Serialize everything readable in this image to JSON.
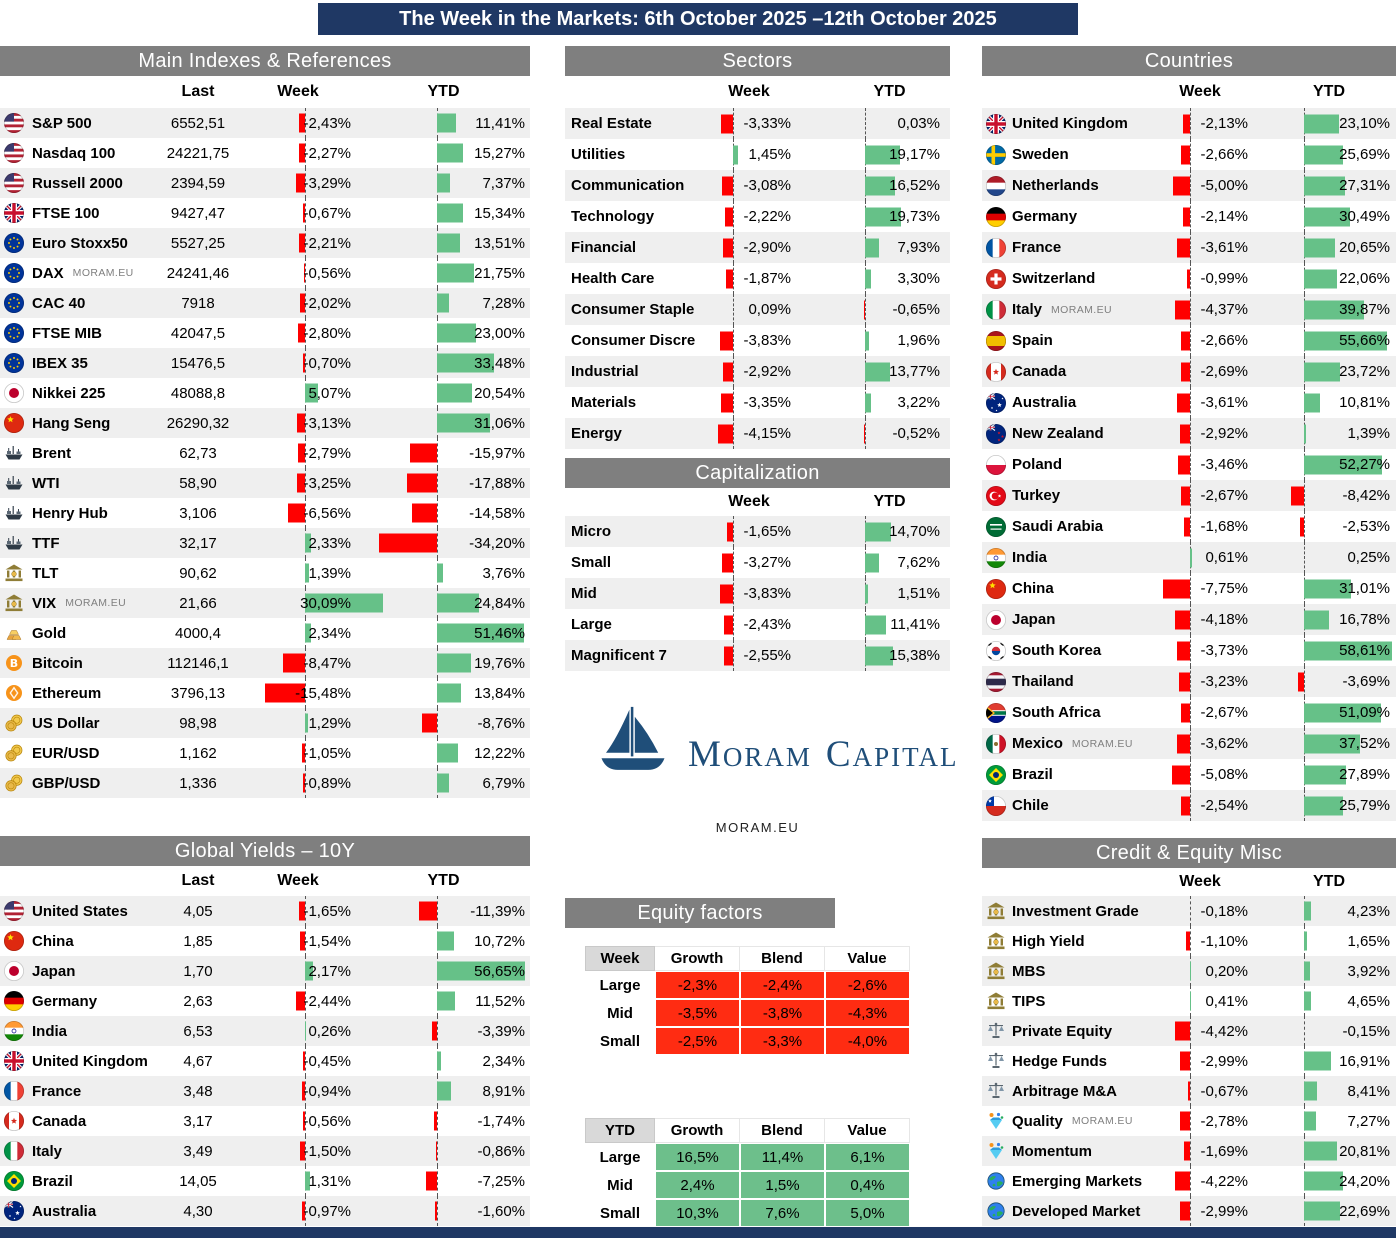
{
  "title": "The Week in the Markets: 6th October 2025 –12th October 2025",
  "logo": {
    "word1": "MORAM",
    "word2": "CAPITAL",
    "site": "MORAM.EU"
  },
  "colors": {
    "header_navy": "#1F3864",
    "section_gray": "#7F7F7F",
    "bar_green": "#66C188",
    "bar_red": "#FF0000",
    "factor_red": "#FF2C12",
    "factor_green": "#6DBF8B",
    "row_alt": "#EFEFEF",
    "logo_navy": "#1F4E79"
  },
  "chart_data": [
    {
      "id": "main_indexes",
      "type": "table",
      "title": "Main Indexes & References",
      "headers": {
        "last": "Last",
        "week": "Week",
        "ytd": "YTD"
      },
      "rows": [
        {
          "icon": "flag-us",
          "label": "S&P 500",
          "last": "6552,51",
          "week": "-2,43%",
          "ytd": "11,41%"
        },
        {
          "icon": "flag-us",
          "label": "Nasdaq 100",
          "last": "24221,75",
          "week": "-2,27%",
          "ytd": "15,27%"
        },
        {
          "icon": "flag-us",
          "label": "Russell 2000",
          "last": "2394,59",
          "week": "-3,29%",
          "ytd": "7,37%"
        },
        {
          "icon": "flag-uk",
          "label": "FTSE 100",
          "last": "9427,47",
          "week": "-0,67%",
          "ytd": "15,34%"
        },
        {
          "icon": "flag-eu",
          "label": "Euro Stoxx50",
          "last": "5527,25",
          "week": "-2,21%",
          "ytd": "13,51%"
        },
        {
          "icon": "flag-eu",
          "label": "DAX",
          "note": "MORAM.EU",
          "last": "24241,46",
          "week": "-0,56%",
          "ytd": "21,75%"
        },
        {
          "icon": "flag-eu",
          "label": "CAC 40",
          "last": "7918",
          "week": "-2,02%",
          "ytd": "7,28%"
        },
        {
          "icon": "flag-eu",
          "label": "FTSE MIB",
          "last": "42047,5",
          "week": "-2,80%",
          "ytd": "23,00%"
        },
        {
          "icon": "flag-eu",
          "label": "IBEX 35",
          "last": "15476,5",
          "week": "-0,70%",
          "ytd": "33,48%"
        },
        {
          "icon": "flag-jp",
          "label": "Nikkei 225",
          "last": "48088,8",
          "week": "5,07%",
          "ytd": "20,54%"
        },
        {
          "icon": "flag-cn",
          "label": "Hang Seng",
          "last": "26290,32",
          "week": "-3,13%",
          "ytd": "31,06%"
        },
        {
          "icon": "ship",
          "label": "Brent",
          "last": "62,73",
          "week": "-2,79%",
          "ytd": "-15,97%"
        },
        {
          "icon": "ship",
          "label": "WTI",
          "last": "58,90",
          "week": "-3,25%",
          "ytd": "-17,88%"
        },
        {
          "icon": "ship",
          "label": "Henry Hub",
          "last": "3,106",
          "week": "-6,56%",
          "ytd": "-14,58%"
        },
        {
          "icon": "ship",
          "label": "TTF",
          "last": "32,17",
          "week": "2,33%",
          "ytd": "-34,20%"
        },
        {
          "icon": "bank",
          "label": "TLT",
          "last": "90,62",
          "week": "1,39%",
          "ytd": "3,76%"
        },
        {
          "icon": "bank",
          "label": "VIX",
          "note": "MORAM.EU",
          "last": "21,66",
          "week": "30,09%",
          "ytd": "24,84%"
        },
        {
          "icon": "gold-bars",
          "label": "Gold",
          "last": "4000,4",
          "week": "2,34%",
          "ytd": "51,46%"
        },
        {
          "icon": "bitcoin",
          "label": "Bitcoin",
          "last": "112146,1",
          "week": "-8,47%",
          "ytd": "19,76%"
        },
        {
          "icon": "ethereum",
          "label": "Ethereum",
          "last": "3796,13",
          "week": "-15,48%",
          "ytd": "13,84%"
        },
        {
          "icon": "coins",
          "label": "US Dollar",
          "last": "98,98",
          "week": "1,29%",
          "ytd": "-8,76%"
        },
        {
          "icon": "coins",
          "label": "EUR/USD",
          "last": "1,162",
          "week": "-1,05%",
          "ytd": "12,22%"
        },
        {
          "icon": "coins",
          "label": "GBP/USD",
          "last": "1,336",
          "week": "-0,89%",
          "ytd": "6,79%"
        }
      ]
    },
    {
      "id": "sectors",
      "type": "table",
      "title": "Sectors",
      "headers": {
        "week": "Week",
        "ytd": "YTD"
      },
      "rows": [
        {
          "label": "Real Estate",
          "week": "-3,33%",
          "ytd": "0,03%"
        },
        {
          "label": "Utilities",
          "week": "1,45%",
          "ytd": "19,17%"
        },
        {
          "label": "Communication",
          "week": "-3,08%",
          "ytd": "16,52%"
        },
        {
          "label": "Technology",
          "week": "-2,22%",
          "ytd": "19,73%"
        },
        {
          "label": "Financial",
          "week": "-2,90%",
          "ytd": "7,93%"
        },
        {
          "label": "Health Care",
          "week": "-1,87%",
          "ytd": "3,30%"
        },
        {
          "label": "Consumer Staple",
          "week": "0,09%",
          "ytd": "-0,65%"
        },
        {
          "label": "Consumer Discre",
          "week": "-3,83%",
          "ytd": "1,96%"
        },
        {
          "label": "Industrial",
          "week": "-2,92%",
          "ytd": "13,77%"
        },
        {
          "label": "Materials",
          "week": "-3,35%",
          "ytd": "3,22%"
        },
        {
          "label": "Energy",
          "week": "-4,15%",
          "ytd": "-0,52%"
        }
      ]
    },
    {
      "id": "capitalization",
      "type": "table",
      "title": "Capitalization",
      "headers": {
        "week": "Week",
        "ytd": "YTD"
      },
      "rows": [
        {
          "label": "Micro",
          "week": "-1,65%",
          "ytd": "14,70%"
        },
        {
          "label": "Small",
          "week": "-3,27%",
          "ytd": "7,62%"
        },
        {
          "label": "Mid",
          "week": "-3,83%",
          "ytd": "1,51%"
        },
        {
          "label": "Large",
          "week": "-2,43%",
          "ytd": "11,41%"
        },
        {
          "label": "Magnificent 7",
          "week": "-2,55%",
          "ytd": "15,38%"
        }
      ]
    },
    {
      "id": "countries",
      "type": "table",
      "title": "Countries",
      "headers": {
        "week": "Week",
        "ytd": "YTD"
      },
      "rows": [
        {
          "icon": "flag-uk",
          "label": "United Kingdom",
          "week": "-2,13%",
          "ytd": "23,10%"
        },
        {
          "icon": "flag-se",
          "label": "Sweden",
          "week": "-2,66%",
          "ytd": "25,69%"
        },
        {
          "icon": "flag-nl",
          "label": "Netherlands",
          "week": "-5,00%",
          "ytd": "27,31%"
        },
        {
          "icon": "flag-de",
          "label": "Germany",
          "week": "-2,14%",
          "ytd": "30,49%"
        },
        {
          "icon": "flag-fr",
          "label": "France",
          "week": "-3,61%",
          "ytd": "20,65%"
        },
        {
          "icon": "flag-ch",
          "label": "Switzerland",
          "week": "-0,99%",
          "ytd": "22,06%"
        },
        {
          "icon": "flag-it",
          "label": "Italy",
          "note": "MORAM.EU",
          "week": "-4,37%",
          "ytd": "39,87%"
        },
        {
          "icon": "flag-es",
          "label": "Spain",
          "week": "-2,66%",
          "ytd": "55,66%"
        },
        {
          "icon": "flag-ca",
          "label": "Canada",
          "week": "-2,69%",
          "ytd": "23,72%"
        },
        {
          "icon": "flag-au",
          "label": "Australia",
          "week": "-3,61%",
          "ytd": "10,81%"
        },
        {
          "icon": "flag-nz",
          "label": "New Zealand",
          "week": "-2,92%",
          "ytd": "1,39%"
        },
        {
          "icon": "flag-pl",
          "label": "Poland",
          "week": "-3,46%",
          "ytd": "52,27%"
        },
        {
          "icon": "flag-tr",
          "label": "Turkey",
          "week": "-2,67%",
          "ytd": "-8,42%"
        },
        {
          "icon": "flag-sa",
          "label": "Saudi Arabia",
          "week": "-1,68%",
          "ytd": "-2,53%"
        },
        {
          "icon": "flag-in",
          "label": "India",
          "week": "0,61%",
          "ytd": "0,25%"
        },
        {
          "icon": "flag-cn",
          "label": "China",
          "week": "-7,75%",
          "ytd": "31,01%"
        },
        {
          "icon": "flag-jp",
          "label": "Japan",
          "week": "-4,18%",
          "ytd": "16,78%"
        },
        {
          "icon": "flag-kr",
          "label": "South Korea",
          "week": "-3,73%",
          "ytd": "58,61%"
        },
        {
          "icon": "flag-th",
          "label": "Thailand",
          "week": "-3,23%",
          "ytd": "-3,69%"
        },
        {
          "icon": "flag-za",
          "label": "South Africa",
          "week": "-2,67%",
          "ytd": "51,09%"
        },
        {
          "icon": "flag-mx",
          "label": "Mexico",
          "note": "MORAM.EU",
          "week": "-3,62%",
          "ytd": "37,52%"
        },
        {
          "icon": "flag-br",
          "label": "Brazil",
          "week": "-5,08%",
          "ytd": "27,89%"
        },
        {
          "icon": "flag-cl",
          "label": "Chile",
          "week": "-2,54%",
          "ytd": "25,79%"
        }
      ]
    },
    {
      "id": "global_yields",
      "type": "table",
      "title": "Global Yields – 10Y",
      "headers": {
        "last": "Last",
        "week": "Week",
        "ytd": "YTD"
      },
      "rows": [
        {
          "icon": "flag-us",
          "label": "United States",
          "last": "4,05",
          "week": "-1,65%",
          "ytd": "-11,39%"
        },
        {
          "icon": "flag-cn",
          "label": "China",
          "last": "1,85",
          "week": "-1,54%",
          "ytd": "10,72%"
        },
        {
          "icon": "flag-jp",
          "label": "Japan",
          "last": "1,70",
          "week": "2,17%",
          "ytd": "56,65%"
        },
        {
          "icon": "flag-de",
          "label": "Germany",
          "last": "2,63",
          "week": "-2,44%",
          "ytd": "11,52%"
        },
        {
          "icon": "flag-in",
          "label": "India",
          "last": "6,53",
          "week": "0,26%",
          "ytd": "-3,39%"
        },
        {
          "icon": "flag-uk",
          "label": "United Kingdom",
          "last": "4,67",
          "week": "-0,45%",
          "ytd": "2,34%"
        },
        {
          "icon": "flag-fr",
          "label": "France",
          "last": "3,48",
          "week": "-0,94%",
          "ytd": "8,91%"
        },
        {
          "icon": "flag-ca",
          "label": "Canada",
          "last": "3,17",
          "week": "-0,56%",
          "ytd": "-1,74%"
        },
        {
          "icon": "flag-it",
          "label": "Italy",
          "last": "3,49",
          "week": "-1,50%",
          "ytd": "-0,86%"
        },
        {
          "icon": "flag-br",
          "label": "Brazil",
          "last": "14,05",
          "week": "1,31%",
          "ytd": "-7,25%"
        },
        {
          "icon": "flag-au",
          "label": "Australia",
          "last": "4,30",
          "week": "-0,97%",
          "ytd": "-1,60%"
        }
      ]
    },
    {
      "id": "credit_misc",
      "type": "table",
      "title": "Credit & Equity Misc",
      "headers": {
        "week": "Week",
        "ytd": "YTD"
      },
      "rows": [
        {
          "icon": "bank",
          "label": "Investment Grade",
          "week": "-0,18%",
          "ytd": "4,23%"
        },
        {
          "icon": "bank",
          "label": "High Yield",
          "week": "-1,10%",
          "ytd": "1,65%"
        },
        {
          "icon": "bank",
          "label": "MBS",
          "week": "0,20%",
          "ytd": "3,92%"
        },
        {
          "icon": "bank",
          "label": "TIPS",
          "week": "0,41%",
          "ytd": "4,65%"
        },
        {
          "icon": "scales",
          "label": "Private Equity",
          "week": "-4,42%",
          "ytd": "-0,15%"
        },
        {
          "icon": "scales",
          "label": "Hedge Funds",
          "week": "-2,99%",
          "ytd": "16,91%"
        },
        {
          "icon": "scales",
          "label": "Arbitrage M&A",
          "week": "-0,67%",
          "ytd": "8,41%"
        },
        {
          "icon": "gem",
          "label": "Quality",
          "note": "MORAM.EU",
          "week": "-2,78%",
          "ytd": "7,27%"
        },
        {
          "icon": "gem",
          "label": "Momentum",
          "week": "-1,69%",
          "ytd": "20,81%"
        },
        {
          "icon": "globe",
          "label": "Emerging Markets",
          "week": "-4,22%",
          "ytd": "24,20%"
        },
        {
          "icon": "globe",
          "label": "Developed Market",
          "week": "-2,99%",
          "ytd": "22,69%"
        }
      ]
    },
    {
      "id": "equity_factors_week",
      "type": "heatmap",
      "title": "Equity factors",
      "corner": "Week",
      "columns": [
        "Growth",
        "Blend",
        "Value"
      ],
      "rows": [
        {
          "label": "Large",
          "values": [
            "-2,3%",
            "-2,4%",
            "-2,6%"
          ]
        },
        {
          "label": "Mid",
          "values": [
            "-3,5%",
            "-3,8%",
            "-4,3%"
          ]
        },
        {
          "label": "Small",
          "values": [
            "-2,5%",
            "-3,3%",
            "-4,0%"
          ]
        }
      ]
    },
    {
      "id": "equity_factors_ytd",
      "type": "heatmap",
      "corner": "YTD",
      "columns": [
        "Growth",
        "Blend",
        "Value"
      ],
      "rows": [
        {
          "label": "Large",
          "values": [
            "16,5%",
            "11,4%",
            "6,1%"
          ]
        },
        {
          "label": "Mid",
          "values": [
            "2,4%",
            "1,5%",
            "0,4%"
          ]
        },
        {
          "label": "Small",
          "values": [
            "10,3%",
            "7,6%",
            "5,0%"
          ]
        }
      ]
    }
  ]
}
